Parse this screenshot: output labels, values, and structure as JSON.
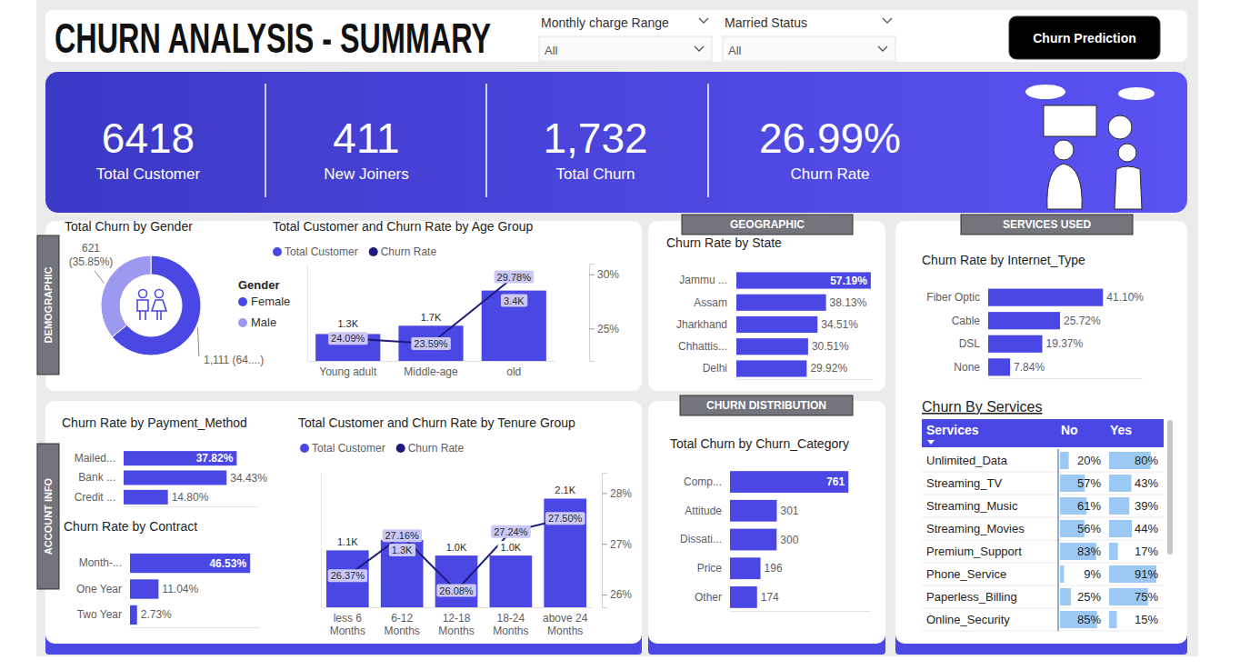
{
  "header": {
    "title": "CHURN ANALYSIS - SUMMARY",
    "button": "Churn Prediction"
  },
  "filters": [
    {
      "label": "Monthly charge Range",
      "value": "All"
    },
    {
      "label": "Married Status",
      "value": "All"
    }
  ],
  "kpis": [
    {
      "value": "6418",
      "label": "Total Customer"
    },
    {
      "value": "411",
      "label": "New Joiners"
    },
    {
      "value": "1,732",
      "label": "Total Churn"
    },
    {
      "value": "26.99%",
      "label": "Churn Rate"
    }
  ],
  "sections": {
    "demographic": "DEMOGRAPHIC",
    "account": "ACCOUNT INFO",
    "geographic": "GEOGRAPHIC",
    "services": "SERVICES USED",
    "distribution": "CHURN DISTRIBUTION"
  },
  "chart_data": [
    {
      "type": "donut",
      "title": "Total Churn by Gender",
      "legend_title": "Gender",
      "legend": "right",
      "categories": [
        "Female",
        "Male"
      ],
      "values": [
        1111,
        621
      ],
      "value_labels": [
        "1,111 (64....)",
        "621 (35.85%)"
      ],
      "colors": [
        "#4B47E5",
        "#9D99F0"
      ],
      "data_labels": true
    },
    {
      "type": "combo",
      "title": "Total Customer and Churn Rate by Age Group",
      "legend": "top",
      "categories": [
        "Young adult",
        "Middle-age",
        "old"
      ],
      "ylim": [
        0,
        4700
      ],
      "y2lim": [
        22,
        31
      ],
      "y2ticks": [
        {
          "value": 25,
          "label": "25%"
        },
        {
          "value": 30,
          "label": "30%"
        }
      ],
      "data_labels": true,
      "series": [
        {
          "name": "Total Customer",
          "type": "bar",
          "color": "#4B47E5",
          "values": [
            1300,
            1700,
            3400
          ],
          "value_labels": [
            "1.3K",
            "1.7K",
            "3.4K"
          ]
        },
        {
          "name": "Churn Rate",
          "type": "line",
          "axis": "y2",
          "color": "#1E1A7A",
          "values": [
            24.09,
            23.59,
            29.78
          ],
          "value_labels": [
            "24.09%",
            "23.59%",
            "29.78%"
          ]
        }
      ]
    },
    {
      "type": "bar",
      "orientation": "horizontal",
      "title": "Churn Rate by State",
      "categories": [
        "Jammu ...",
        "Assam",
        "Jharkhand",
        "Chhattis...",
        "Delhi"
      ],
      "values": [
        57.19,
        38.13,
        34.51,
        30.51,
        29.92
      ],
      "value_labels": [
        "57.19%",
        "38.13%",
        "34.51%",
        "30.51%",
        "29.92%"
      ],
      "xlim": [
        0,
        58
      ],
      "color": "#4B47E5",
      "data_labels": true,
      "tick_labels": "y"
    },
    {
      "type": "bar",
      "orientation": "horizontal",
      "title": "Churn Rate by Internet_Type",
      "categories": [
        "Fiber Optic",
        "Cable",
        "DSL",
        "None"
      ],
      "values": [
        41.1,
        25.72,
        19.37,
        7.84
      ],
      "value_labels": [
        "41.10%",
        "25.72%",
        "19.37%",
        "7.84%"
      ],
      "xlim": [
        0,
        55
      ],
      "color": "#4B47E5",
      "data_labels": true,
      "tick_labels": "y"
    },
    {
      "type": "bar",
      "orientation": "horizontal",
      "title": "Churn Rate by Payment_Method",
      "categories": [
        "Mailed...",
        "Bank ...",
        "Credit ..."
      ],
      "values": [
        37.82,
        34.43,
        14.8
      ],
      "value_labels": [
        "37.82%",
        "34.43%",
        "14.80%"
      ],
      "xlim": [
        0,
        45
      ],
      "color": "#4B47E5",
      "data_labels": true,
      "tick_labels": "y"
    },
    {
      "type": "bar",
      "orientation": "horizontal",
      "title": "Churn Rate by Contract",
      "categories": [
        "Month-...",
        "One Year",
        "Two Year"
      ],
      "values": [
        46.53,
        11.04,
        2.73
      ],
      "value_labels": [
        "46.53%",
        "11.04%",
        "2.73%"
      ],
      "xlim": [
        0,
        50
      ],
      "color": "#4B47E5",
      "data_labels": true,
      "tick_labels": "y"
    },
    {
      "type": "combo",
      "title": "Total Customer and Churn Rate by Tenure Group",
      "legend": "top",
      "categories": [
        "less 6 Months",
        "6-12 Months",
        "12-18 Months",
        "18-24 Months",
        "above 24 Months"
      ],
      "ylim": [
        0,
        2600
      ],
      "y2lim": [
        25.75,
        28.4
      ],
      "y2ticks": [
        {
          "value": 26,
          "label": "26%"
        },
        {
          "value": 27,
          "label": "27%"
        },
        {
          "value": 28,
          "label": "28%"
        }
      ],
      "data_labels": true,
      "series": [
        {
          "name": "Total Customer",
          "type": "bar",
          "color": "#4B47E5",
          "values": [
            1100,
            1300,
            1000,
            1000,
            2100
          ],
          "value_labels": [
            "1.1K",
            "1.3K",
            "1.0K",
            "1.0K",
            "2.1K"
          ]
        },
        {
          "name": "Churn Rate",
          "type": "line",
          "axis": "y2",
          "color": "#1E1A7A",
          "values": [
            26.37,
            27.16,
            26.08,
            27.24,
            27.5
          ],
          "value_labels": [
            "26.37%",
            "27.16%",
            "26.08%",
            "27.24%",
            "27.50%"
          ]
        }
      ]
    },
    {
      "type": "bar",
      "orientation": "horizontal",
      "title": "Total Churn by Churn_Category",
      "categories": [
        "Comp...",
        "Attitude",
        "Dissati...",
        "Price",
        "Other"
      ],
      "values": [
        761,
        301,
        300,
        196,
        174
      ],
      "xlim": [
        0,
        900
      ],
      "color": "#4B47E5",
      "data_labels": true,
      "tick_labels": "y"
    }
  ],
  "services_table": {
    "title": "Churn By Services",
    "header": "Services",
    "rows": [
      "Unlimited_Data",
      "Streaming_TV",
      "Streaming_Music",
      "Streaming_Movies",
      "Premium_Support",
      "Phone_Service",
      "Paperless_Billing",
      "Online_Security"
    ],
    "xlim": [
      0,
      100
    ],
    "series": [
      {
        "name": "No",
        "color": "#9CC9F4",
        "values": [
          20,
          57,
          61,
          56,
          83,
          9,
          25,
          85
        ],
        "value_labels": [
          "20%",
          "57%",
          "61%",
          "56%",
          "83%",
          "9%",
          "25%",
          "85%"
        ]
      },
      {
        "name": "Yes",
        "color": "#9CC9F4",
        "values": [
          80,
          43,
          39,
          44,
          17,
          91,
          75,
          15
        ],
        "value_labels": [
          "80%",
          "43%",
          "39%",
          "44%",
          "17%",
          "91%",
          "75%",
          "15%"
        ]
      }
    ]
  }
}
